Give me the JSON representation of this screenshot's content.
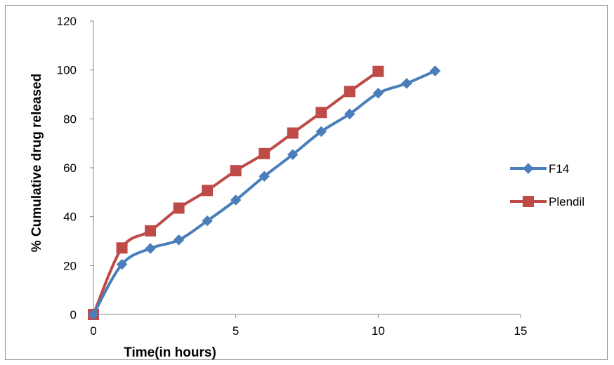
{
  "chart_data": {
    "type": "line",
    "title": "",
    "xlabel": "Time(in hours)",
    "ylabel": "% Cumulative drug released",
    "xlim": [
      0,
      15
    ],
    "ylim": [
      0,
      120
    ],
    "x_ticks": [
      0,
      5,
      10,
      15
    ],
    "y_ticks": [
      0,
      20,
      40,
      60,
      80,
      100,
      120
    ],
    "grid": false,
    "legend_position": "right",
    "series": [
      {
        "name": "F14",
        "color": "#4a7ebb",
        "marker": "diamond",
        "x": [
          0,
          1,
          2,
          3,
          4,
          5,
          6,
          7,
          8,
          9,
          10,
          11,
          12
        ],
        "y": [
          0,
          20.5,
          27,
          30.5,
          38.3,
          46.8,
          56.5,
          65.4,
          74.8,
          82,
          90.5,
          94.5,
          99.6
        ]
      },
      {
        "name": "Plendil",
        "color": "#be4b48",
        "marker": "square",
        "x": [
          0,
          1,
          2,
          3,
          4,
          5,
          6,
          7,
          8,
          9,
          10
        ],
        "y": [
          0,
          27.2,
          34.2,
          43.5,
          50.7,
          58.8,
          65.8,
          74.2,
          82.6,
          91.2,
          99.4
        ]
      }
    ]
  }
}
